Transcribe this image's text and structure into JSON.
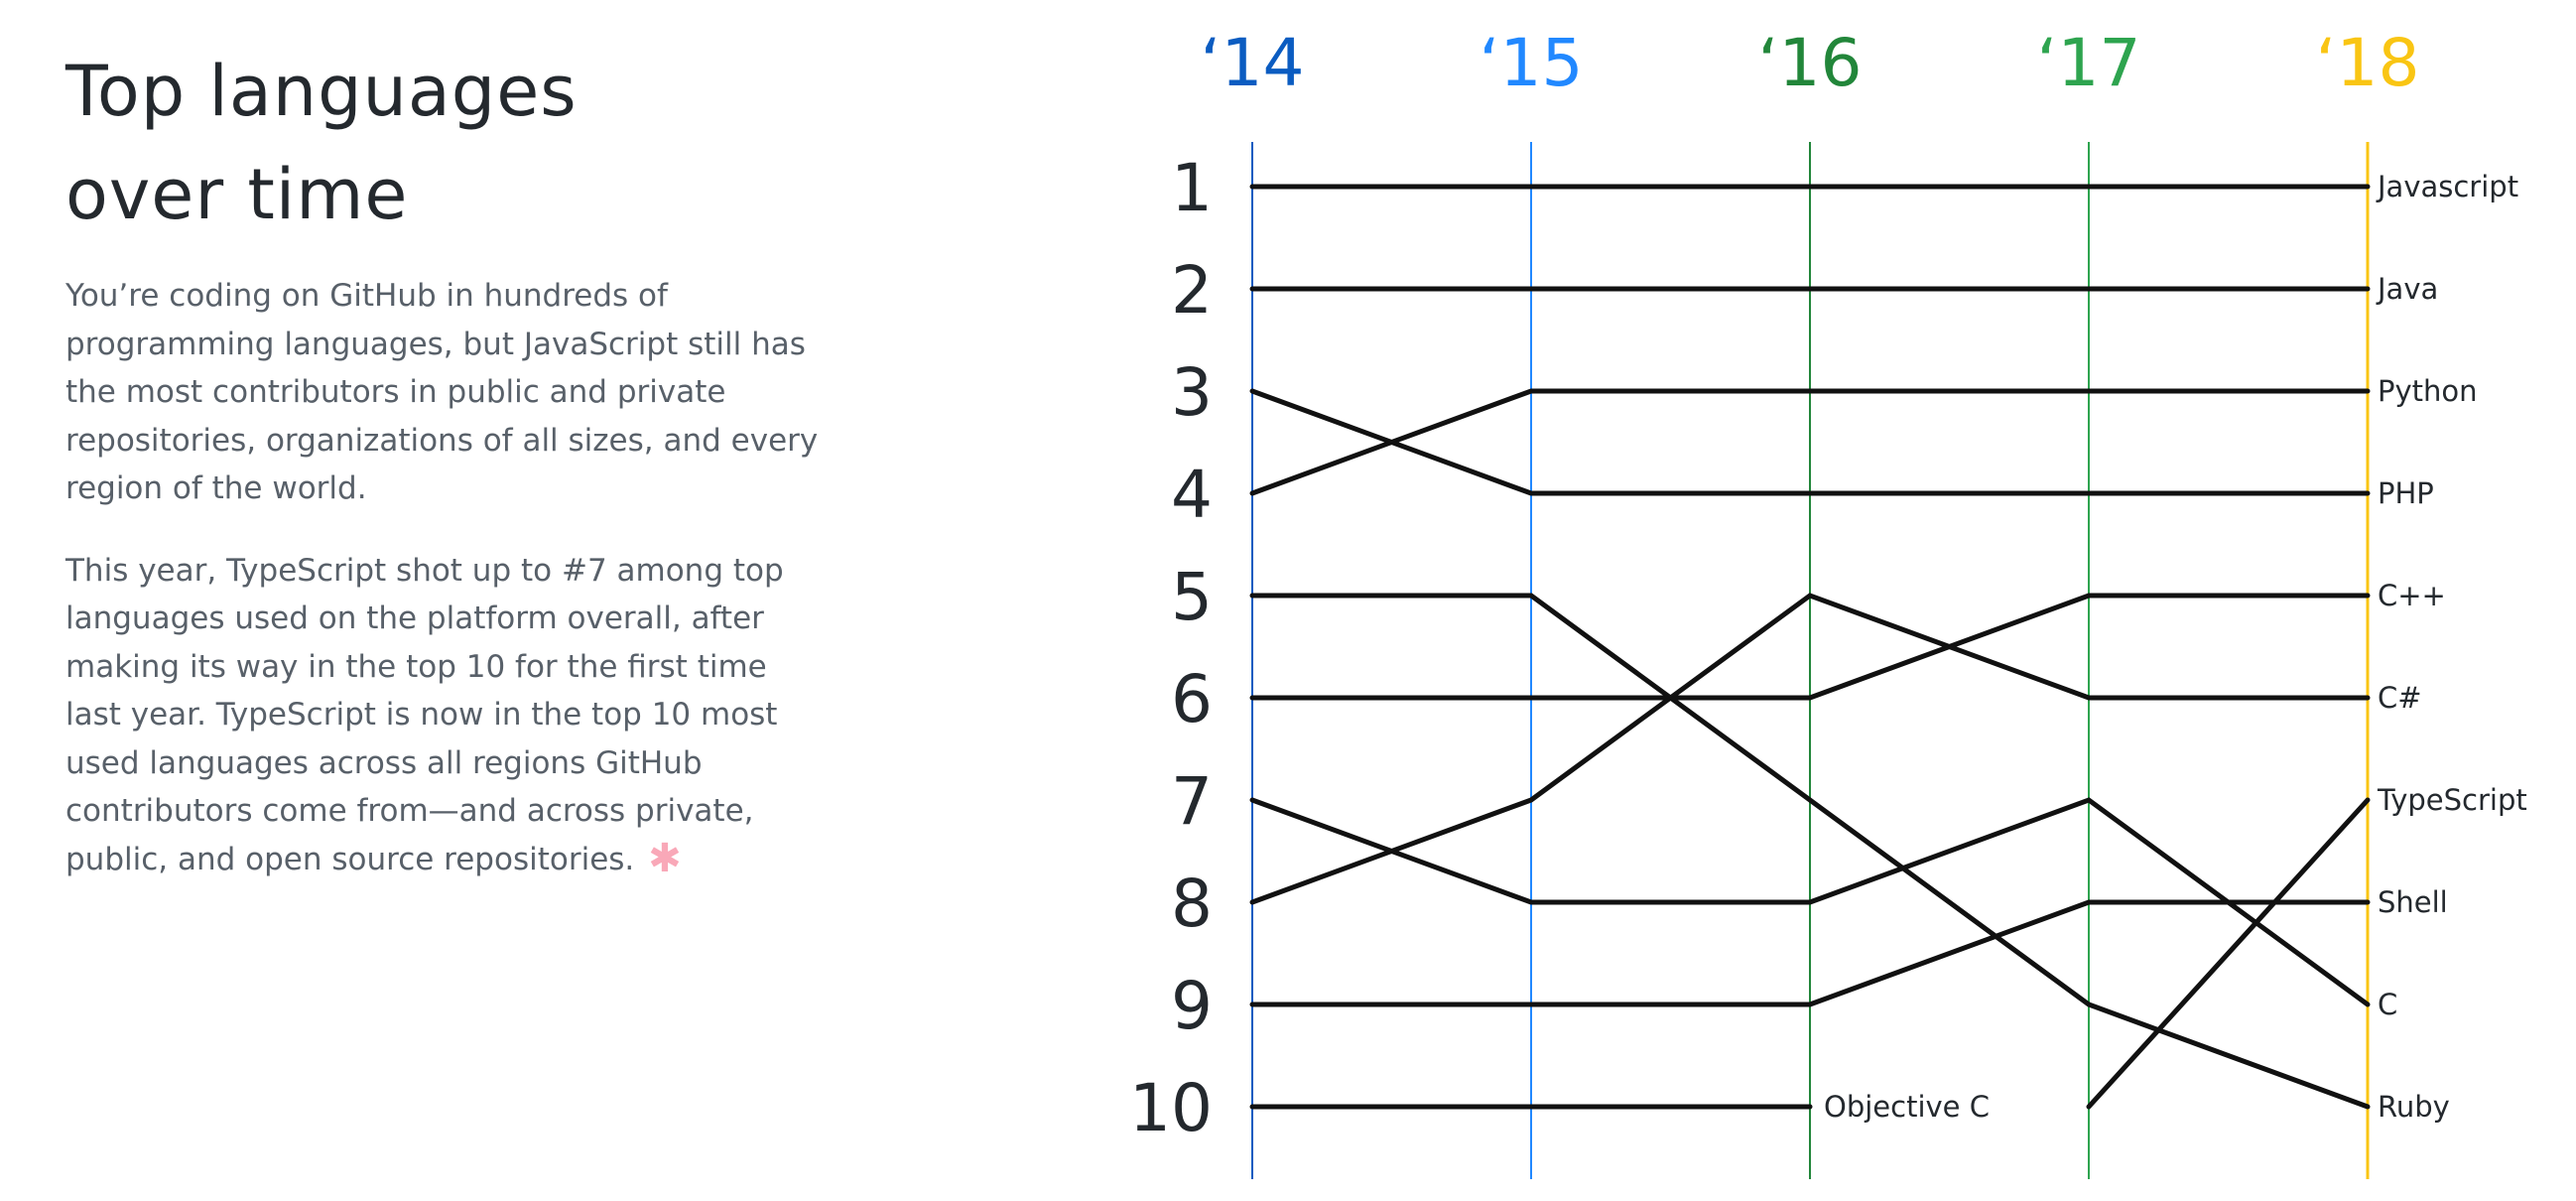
{
  "header": {
    "title_line1": "Top languages",
    "title_line2": "over time"
  },
  "body": {
    "paragraph1": "You’re coding on GitHub in hundreds of programming languages, but JavaScript still has the most contributors in public and private repositories, organizations of all sizes, and every region of the world.",
    "paragraph2": "This year, TypeScript shot up to #7 among top languages used on the platform overall, after making its way in the top 10 for the first time last year. TypeScript is now in the top 10 most used languages across all regions GitHub contributors come from—and across private, public, and open source repositories.",
    "asterisk": "✱"
  },
  "colors": {
    "2014": "#0b5cc1",
    "2015": "#2188ff",
    "2016": "#22863a",
    "2017": "#2ea44f",
    "2018": "#f9c513",
    "lines": "#111111",
    "text": "#24292e",
    "muted": "#586069",
    "asterisk": "#f9a8b8"
  },
  "chart_data": {
    "type": "line",
    "x": [
      "‘14",
      "‘15",
      "‘16",
      "‘17",
      "‘18"
    ],
    "y_ticks": [
      "1",
      "2",
      "3",
      "4",
      "5",
      "6",
      "7",
      "8",
      "9",
      "10"
    ],
    "ylim": [
      1,
      10
    ],
    "y_inverted": true,
    "grid": false,
    "series": [
      {
        "name": "Javascript",
        "values": [
          1,
          1,
          1,
          1,
          1
        ]
      },
      {
        "name": "Java",
        "values": [
          2,
          2,
          2,
          2,
          2
        ]
      },
      {
        "name": "Python",
        "values": [
          4,
          3,
          3,
          3,
          3
        ]
      },
      {
        "name": "PHP",
        "values": [
          3,
          4,
          4,
          4,
          4
        ]
      },
      {
        "name": "C++",
        "values": [
          6,
          6,
          6,
          5,
          5
        ]
      },
      {
        "name": "C#",
        "values": [
          8,
          7,
          5,
          6,
          6
        ]
      },
      {
        "name": "TypeScript",
        "values": [
          null,
          null,
          null,
          10,
          7
        ]
      },
      {
        "name": "Shell",
        "values": [
          9,
          9,
          9,
          8,
          8
        ]
      },
      {
        "name": "C",
        "values": [
          7,
          8,
          8,
          7,
          9
        ]
      },
      {
        "name": "Ruby",
        "values": [
          5,
          5,
          7,
          9,
          10
        ]
      },
      {
        "name": "Objective C",
        "values": [
          10,
          10,
          10,
          null,
          null
        ]
      }
    ]
  }
}
